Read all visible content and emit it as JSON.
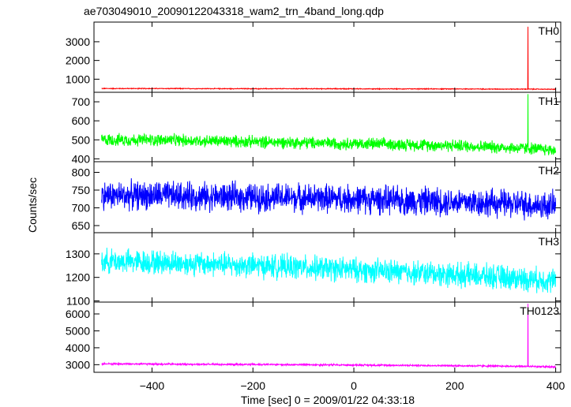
{
  "chart_data": {
    "type": "line",
    "title": "ae703049010_20090122043318_wam2_trn_4band_long.qdp",
    "xlabel": "Time [sec] 0 = 2009/01/22 04:33:18",
    "ylabel": "Counts/sec",
    "xlim": [
      -515,
      410
    ],
    "x_ticks": [
      -400,
      -200,
      0,
      200,
      400
    ],
    "x_tick_labels": [
      "−400",
      "−200",
      "0",
      "200",
      "400"
    ],
    "grid": false,
    "panels": [
      {
        "name": "TH0",
        "color": "#ff0000",
        "ylim": [
          300,
          4050
        ],
        "y_ticks": [
          1000,
          2000,
          3000
        ],
        "y_tick_labels": [
          "1000",
          "2000",
          "3000"
        ],
        "series": [
          {
            "x": [
              -500,
              -400,
              -300,
              -200,
              -100,
              0,
              100,
              200,
              300,
              340,
              345,
              350,
              400
            ],
            "y": [
              500,
              500,
              495,
              490,
              490,
              485,
              480,
              480,
              470,
              470,
              3800,
              470,
              460
            ]
          }
        ]
      },
      {
        "name": "TH1",
        "color": "#00ff00",
        "ylim": [
          385,
          750
        ],
        "y_ticks": [
          400,
          500,
          600,
          700
        ],
        "y_tick_labels": [
          "400",
          "500",
          "600",
          "700"
        ],
        "series": [
          {
            "x": [
              -500,
              -400,
              -300,
              -200,
              -100,
              0,
              100,
              200,
              300,
              340,
              345,
              350,
              400
            ],
            "y": [
              500,
              500,
              495,
              490,
              485,
              480,
              475,
              470,
              460,
              455,
              740,
              455,
              445
            ]
          }
        ]
      },
      {
        "name": "TH2",
        "color": "#0000ff",
        "ylim": [
          630,
          830
        ],
        "y_ticks": [
          650,
          700,
          750,
          800
        ],
        "y_tick_labels": [
          "650",
          "700",
          "750",
          "800"
        ],
        "series": [
          {
            "x": [
              -500,
              -400,
              -300,
              -200,
              -100,
              0,
              100,
              200,
              300,
              400
            ],
            "y": [
              735,
              735,
              732,
              730,
              728,
              725,
              720,
              718,
              712,
              705
            ]
          }
        ]
      },
      {
        "name": "TH3",
        "color": "#00ffff",
        "ylim": [
          1095,
          1390
        ],
        "y_ticks": [
          1100,
          1200,
          1300
        ],
        "y_tick_labels": [
          "1100",
          "1200",
          "1300"
        ],
        "series": [
          {
            "x": [
              -500,
              -400,
              -300,
              -200,
              -100,
              0,
              100,
              200,
              300,
              400
            ],
            "y": [
              1270,
              1265,
              1258,
              1250,
              1242,
              1232,
              1222,
              1212,
              1200,
              1185
            ]
          }
        ]
      },
      {
        "name": "TH0123",
        "color": "#ff00ff",
        "ylim": [
          2550,
          6700
        ],
        "y_ticks": [
          3000,
          4000,
          5000,
          6000
        ],
        "y_tick_labels": [
          "3000",
          "4000",
          "5000",
          "6000"
        ],
        "series": [
          {
            "x": [
              -500,
              -400,
              -300,
              -200,
              -100,
              0,
              100,
              200,
              300,
              340,
              345,
              350,
              400
            ],
            "y": [
              3050,
              3040,
              3020,
              3010,
              3000,
              2980,
              2960,
              2940,
              2910,
              2900,
              6600,
              2900,
              2860
            ]
          }
        ]
      }
    ]
  }
}
